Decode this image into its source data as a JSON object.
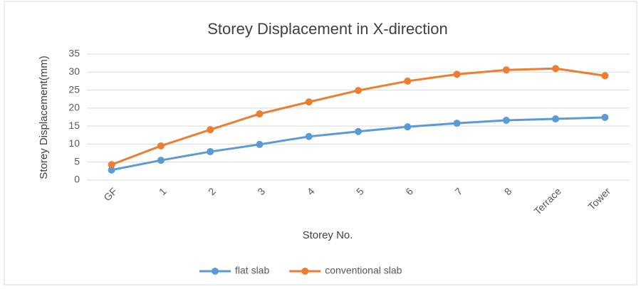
{
  "chart_data": {
    "type": "line",
    "title": "Storey Displacement in X-direction",
    "x_label": "Storey No.",
    "y_label": "Storey Displacement(mm)",
    "categories": [
      "GF",
      "1",
      "2",
      "3",
      "4",
      "5",
      "6",
      "7",
      "8",
      "Terrace",
      "Tower"
    ],
    "series": [
      {
        "name": "flat slab",
        "color": "#5b9bd5",
        "values": [
          2.8,
          5.5,
          7.9,
          9.9,
          12.1,
          13.5,
          14.8,
          15.8,
          16.6,
          17.0,
          17.4
        ]
      },
      {
        "name": "conventional slab",
        "color": "#ed7d31",
        "values": [
          4.3,
          9.5,
          14.0,
          18.4,
          21.7,
          24.9,
          27.5,
          29.4,
          30.6,
          31.0,
          29.0
        ]
      }
    ],
    "ylim": [
      0,
      35
    ],
    "yticks": [
      0,
      5,
      10,
      15,
      20,
      25,
      30,
      35
    ],
    "grid": true,
    "legend": "bottom"
  }
}
